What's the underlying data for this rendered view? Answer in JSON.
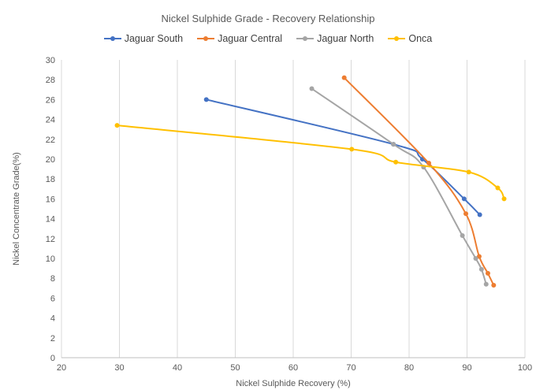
{
  "chart_data": {
    "type": "line",
    "title": "Nickel Sulphide Grade - Recovery Relationship",
    "xlabel": "Nickel Sulphide Recovery (%)",
    "ylabel": "Nickel Concentrate Grade(%)",
    "xlim": [
      20,
      100
    ],
    "ylim": [
      0,
      30
    ],
    "xticks": [
      20,
      30,
      40,
      50,
      60,
      70,
      80,
      90,
      100
    ],
    "yticks": [
      0,
      2,
      4,
      6,
      8,
      10,
      12,
      14,
      16,
      18,
      20,
      22,
      24,
      26,
      28,
      30
    ],
    "grid": "vertical",
    "legend_position": "top",
    "series": [
      {
        "name": "Jaguar South",
        "color": "#4472C4",
        "points": [
          [
            45,
            26
          ],
          [
            77.3,
            21.5
          ],
          [
            82.3,
            20
          ],
          [
            89.5,
            16
          ],
          [
            92.2,
            14.4
          ]
        ]
      },
      {
        "name": "Jaguar Central",
        "color": "#ED7D31",
        "points": [
          [
            68.8,
            28.2
          ],
          [
            83.4,
            19.6
          ],
          [
            89.8,
            14.5
          ],
          [
            92.1,
            10.2
          ],
          [
            93.6,
            8.5
          ],
          [
            94.6,
            7.3
          ]
        ]
      },
      {
        "name": "Jaguar North",
        "color": "#A5A5A5",
        "points": [
          [
            63.2,
            27.1
          ],
          [
            77.3,
            21.5
          ],
          [
            82.5,
            19.2
          ],
          [
            89.2,
            12.3
          ],
          [
            91.5,
            10
          ],
          [
            92.5,
            8.9
          ],
          [
            93.3,
            7.4
          ]
        ]
      },
      {
        "name": "Onca",
        "color": "#FFC000",
        "points": [
          [
            29.6,
            23.4
          ],
          [
            70.1,
            21
          ],
          [
            77.7,
            19.7
          ],
          [
            90.3,
            18.7
          ],
          [
            95.3,
            17.1
          ],
          [
            96.4,
            16
          ]
        ]
      }
    ]
  }
}
